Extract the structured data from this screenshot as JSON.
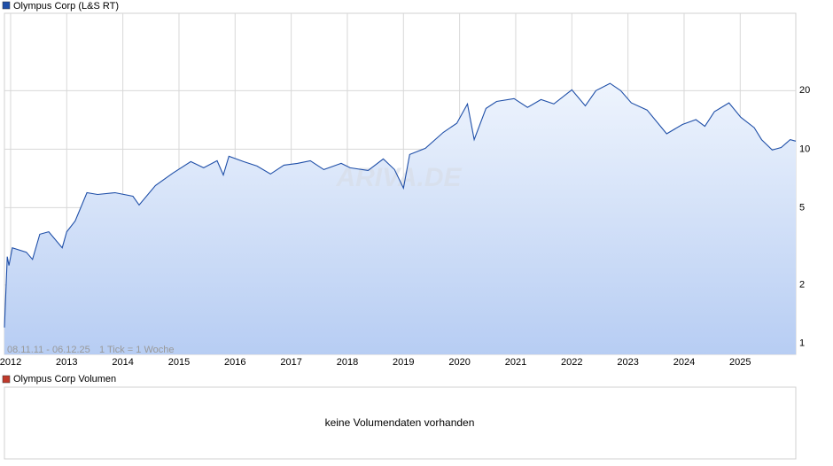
{
  "chart_data": {
    "type": "line",
    "legend": "Olympus Corp (L&S RT)",
    "range_label": "08.11.11 - 06.12.25",
    "tick_label": "1 Tick = 1 Woche",
    "watermark": "ARIVA.DE",
    "log_y": true,
    "grid": true,
    "xlim": [
      2011.89,
      2025.99
    ],
    "xticks": [
      2012,
      2013,
      2014,
      2015,
      2016,
      2017,
      2018,
      2019,
      2020,
      2021,
      2022,
      2023,
      2024,
      2025
    ],
    "ylim": [
      0.88,
      50
    ],
    "yticks": [
      1,
      2,
      5,
      10,
      20
    ],
    "series": [
      {
        "name": "Olympus Corp (L&S RT)",
        "color": "#1f4fa8",
        "x": [
          2011.89,
          2011.94,
          2011.97,
          2012.03,
          2012.28,
          2012.39,
          2012.52,
          2012.68,
          2012.92,
          2013.0,
          2013.15,
          2013.36,
          2013.55,
          2013.86,
          2014.18,
          2014.29,
          2014.58,
          2014.89,
          2015.21,
          2015.44,
          2015.68,
          2015.79,
          2015.89,
          2016.15,
          2016.39,
          2016.63,
          2016.87,
          2017.11,
          2017.34,
          2017.58,
          2017.89,
          2018.05,
          2018.37,
          2018.64,
          2018.84,
          2019.0,
          2019.11,
          2019.39,
          2019.71,
          2019.95,
          2020.14,
          2020.26,
          2020.47,
          2020.66,
          2020.97,
          2021.21,
          2021.45,
          2021.68,
          2022.0,
          2022.24,
          2022.43,
          2022.68,
          2022.87,
          2023.06,
          2023.34,
          2023.69,
          2023.97,
          2024.21,
          2024.37,
          2024.54,
          2024.8,
          2025.01,
          2025.25,
          2025.38,
          2025.57,
          2025.73,
          2025.89,
          2025.99
        ],
        "values": [
          1.21,
          2.8,
          2.52,
          3.11,
          2.95,
          2.71,
          3.65,
          3.76,
          3.11,
          3.76,
          4.27,
          5.97,
          5.85,
          5.97,
          5.73,
          5.16,
          6.5,
          7.53,
          8.63,
          8.02,
          8.72,
          7.37,
          9.19,
          8.63,
          8.19,
          7.45,
          8.28,
          8.45,
          8.72,
          7.85,
          8.45,
          8.02,
          7.77,
          8.91,
          7.85,
          6.3,
          9.39,
          10.1,
          12.2,
          13.6,
          17.1,
          11.2,
          16.2,
          17.6,
          18.2,
          16.4,
          18.0,
          17.1,
          20.2,
          16.7,
          20.0,
          21.8,
          20.0,
          17.3,
          15.9,
          12.0,
          13.4,
          14.2,
          13.1,
          15.6,
          17.3,
          14.6,
          12.9,
          11.2,
          9.9,
          10.2,
          11.2,
          11.0
        ]
      }
    ],
    "volume": {
      "legend": "Olympus Corp Volumen",
      "color": "#c0392b",
      "message": "keine Volumendaten vorhanden"
    }
  }
}
